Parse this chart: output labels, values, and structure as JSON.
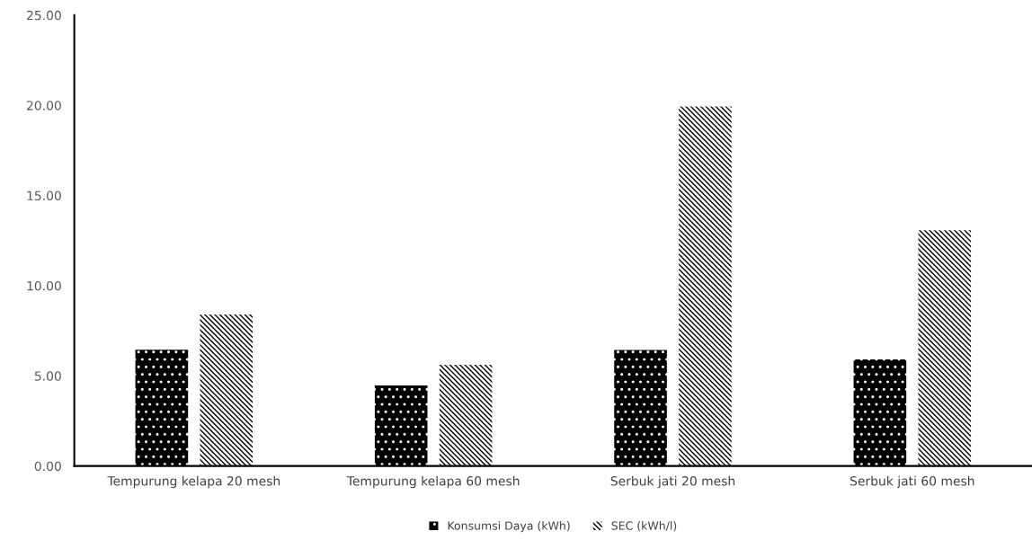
{
  "chart_data": {
    "type": "bar",
    "categories": [
      "Tempurung kelapa 20 mesh",
      "Tempurung kelapa 60 mesh",
      "Serbuk jati 20 mesh",
      "Serbuk jati 60 mesh"
    ],
    "series": [
      {
        "name": "Konsumsi Daya (kWh)",
        "color": "#000000",
        "values": [
          6.45,
          4.47,
          6.44,
          5.91
        ]
      },
      {
        "name": "SEC (kWh/l)",
        "color": "#000000",
        "values": [
          8.4,
          5.61,
          19.94,
          13.07
        ]
      }
    ],
    "ylim": [
      0,
      25
    ],
    "yticks": [
      {
        "value": 0,
        "label": "0.00"
      },
      {
        "value": 5,
        "label": "5.00"
      },
      {
        "value": 10,
        "label": "10.00"
      },
      {
        "value": 15,
        "label": "15.00"
      },
      {
        "value": 20,
        "label": "20.00"
      },
      {
        "value": 25,
        "label": "25.00"
      }
    ],
    "grid": false,
    "legend": "bottom"
  }
}
